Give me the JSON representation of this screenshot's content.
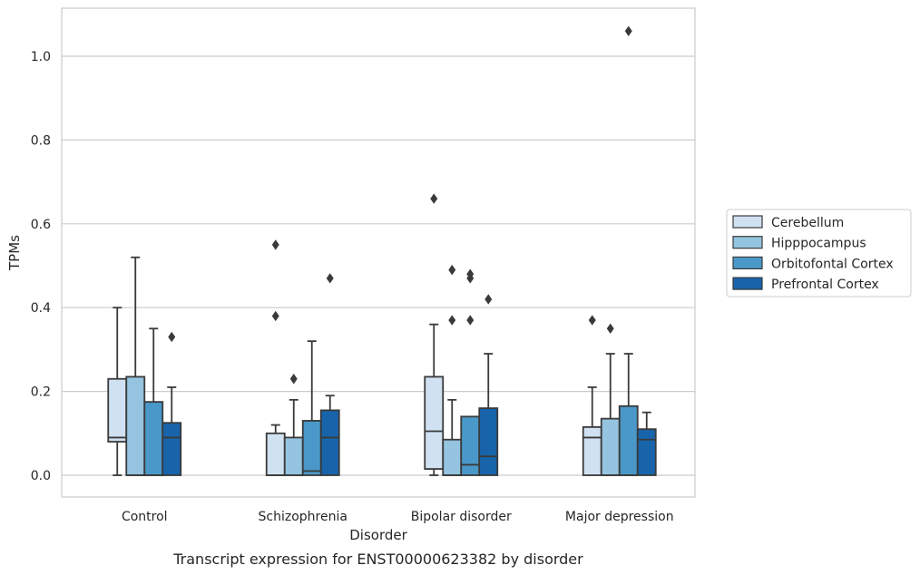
{
  "chart_data": {
    "type": "box",
    "title": "",
    "caption": "Transcript expression for ENST00000623382 by disorder",
    "xlabel": "Disorder",
    "ylabel": "TPMs",
    "ylim": [
      -0.05,
      1.12
    ],
    "yticks": [
      0.0,
      0.2,
      0.4,
      0.6,
      0.8,
      1.0
    ],
    "ytick_labels": [
      "0.0",
      "0.2",
      "0.4",
      "0.6",
      "0.8",
      "1.0"
    ],
    "grid": "horizontal",
    "legend_position": "right",
    "categories": [
      "Control",
      "Schizophrenia",
      "Bipolar disorder",
      "Major depression"
    ],
    "series": [
      {
        "name": "Cerebellum",
        "color": "#d0e1f2",
        "boxes": [
          {
            "whislo": 0.0,
            "q1": 0.08,
            "med": 0.09,
            "q3": 0.23,
            "whishi": 0.4,
            "fliers": []
          },
          {
            "whislo": 0.0,
            "q1": 0.0,
            "med": 0.0,
            "q3": 0.1,
            "whishi": 0.12,
            "fliers": [
              0.38,
              0.55
            ]
          },
          {
            "whislo": 0.0,
            "q1": 0.015,
            "med": 0.105,
            "q3": 0.235,
            "whishi": 0.36,
            "fliers": [
              0.66
            ]
          },
          {
            "whislo": 0.0,
            "q1": 0.0,
            "med": 0.09,
            "q3": 0.115,
            "whishi": 0.21,
            "fliers": [
              0.37
            ]
          }
        ]
      },
      {
        "name": "Hipppocampus",
        "color": "#94c4df",
        "boxes": [
          {
            "whislo": 0.0,
            "q1": 0.0,
            "med": 0.0,
            "q3": 0.235,
            "whishi": 0.52,
            "fliers": []
          },
          {
            "whislo": 0.0,
            "q1": 0.0,
            "med": 0.0,
            "q3": 0.09,
            "whishi": 0.18,
            "fliers": [
              0.23
            ]
          },
          {
            "whislo": 0.0,
            "q1": 0.0,
            "med": 0.0,
            "q3": 0.085,
            "whishi": 0.18,
            "fliers": [
              0.37,
              0.49
            ]
          },
          {
            "whislo": 0.0,
            "q1": 0.0,
            "med": 0.0,
            "q3": 0.135,
            "whishi": 0.29,
            "fliers": [
              0.35
            ]
          }
        ]
      },
      {
        "name": "Orbitofontal Cortex",
        "color": "#4a98c9",
        "boxes": [
          {
            "whislo": 0.0,
            "q1": 0.0,
            "med": 0.0,
            "q3": 0.175,
            "whishi": 0.35,
            "fliers": []
          },
          {
            "whislo": 0.0,
            "q1": 0.0,
            "med": 0.01,
            "q3": 0.13,
            "whishi": 0.32,
            "fliers": []
          },
          {
            "whislo": 0.0,
            "q1": 0.0,
            "med": 0.025,
            "q3": 0.14,
            "whishi": 0.14,
            "fliers": [
              0.37,
              0.47,
              0.48
            ]
          },
          {
            "whislo": 0.0,
            "q1": 0.0,
            "med": 0.0,
            "q3": 0.165,
            "whishi": 0.29,
            "fliers": [
              1.06
            ]
          }
        ]
      },
      {
        "name": "Prefrontal Cortex",
        "color": "#1764ab",
        "boxes": [
          {
            "whislo": 0.0,
            "q1": 0.0,
            "med": 0.09,
            "q3": 0.125,
            "whishi": 0.21,
            "fliers": [
              0.33
            ]
          },
          {
            "whislo": 0.0,
            "q1": 0.0,
            "med": 0.09,
            "q3": 0.155,
            "whishi": 0.19,
            "fliers": [
              0.47
            ]
          },
          {
            "whislo": 0.0,
            "q1": 0.0,
            "med": 0.045,
            "q3": 0.16,
            "whishi": 0.29,
            "fliers": [
              0.42
            ]
          },
          {
            "whislo": 0.0,
            "q1": 0.0,
            "med": 0.085,
            "q3": 0.11,
            "whishi": 0.15,
            "fliers": []
          }
        ]
      }
    ]
  }
}
